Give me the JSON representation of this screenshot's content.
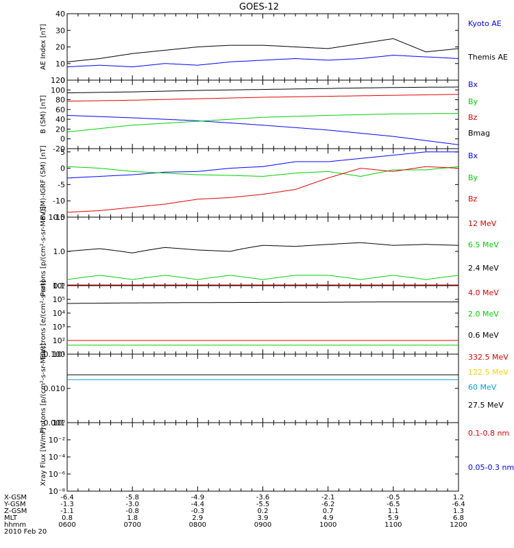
{
  "title": "GOES-12",
  "date": "2010 Feb 20",
  "colors": {
    "black": "#000000",
    "blue": "#0000ff",
    "green": "#00d000",
    "red": "#e00000",
    "cyan": "#00a0e0",
    "yellow": "#ffd200"
  },
  "chart_data": [
    {
      "type": "line",
      "ylabel": "AE Index [nT]",
      "ylim": [
        0,
        40
      ],
      "ticks": [
        "40",
        "30",
        "20",
        "10",
        "0"
      ],
      "tick_values": [
        40,
        30,
        20,
        10,
        0
      ],
      "x_hours": [
        6,
        6.5,
        7,
        7.5,
        8,
        8.5,
        9,
        9.5,
        10,
        10.5,
        11,
        11.5,
        12
      ],
      "series": [
        {
          "name": "Kyoto AE",
          "color": "blue",
          "values": [
            8,
            9,
            8,
            10,
            9,
            11,
            12,
            13,
            12,
            13,
            15,
            14,
            13
          ]
        },
        {
          "name": "Themis AE",
          "color": "black",
          "values": [
            11,
            13,
            16,
            18,
            20,
            21,
            21,
            20,
            19,
            22,
            25,
            17,
            19
          ]
        }
      ]
    },
    {
      "type": "line",
      "ylabel": "B (SM) [nT]",
      "ylim": [
        -20,
        120
      ],
      "ticks": [
        "120",
        "100",
        "80",
        "60",
        "40",
        "20",
        "0",
        "-20"
      ],
      "tick_values": [
        120,
        100,
        80,
        60,
        40,
        20,
        0,
        -20
      ],
      "x_hours": [
        6,
        7,
        8,
        9,
        10,
        11,
        12
      ],
      "series": [
        {
          "name": "Bx",
          "color": "blue",
          "values": [
            48,
            43,
            37,
            28,
            18,
            5,
            -12
          ]
        },
        {
          "name": "By",
          "color": "green",
          "values": [
            14,
            28,
            36,
            44,
            48,
            51,
            52
          ]
        },
        {
          "name": "Bz",
          "color": "red",
          "values": [
            77,
            79,
            82,
            85,
            87,
            89,
            91
          ]
        },
        {
          "name": "Bmag",
          "color": "black",
          "values": [
            94,
            96,
            99,
            101,
            103,
            105,
            106
          ]
        }
      ]
    },
    {
      "type": "line",
      "ylabel": "B (SM)-IGRF (SM) [nT]",
      "ylim": [
        -15,
        6
      ],
      "ticks": [
        "5",
        "0",
        "-5",
        "-10",
        "-15"
      ],
      "tick_values": [
        5,
        0,
        -5,
        -10,
        -15
      ],
      "x_hours": [
        6,
        6.5,
        7,
        7.5,
        8,
        8.5,
        9,
        9.5,
        10,
        10.5,
        11,
        11.5,
        12
      ],
      "series": [
        {
          "name": "Bx",
          "color": "blue",
          "values": [
            -3,
            -2.5,
            -2,
            -1.2,
            -1,
            0,
            0.5,
            2,
            2,
            3,
            4,
            5,
            5
          ]
        },
        {
          "name": "By",
          "color": "green",
          "values": [
            0.5,
            0,
            -1,
            -1.5,
            -2,
            -2.2,
            -2.5,
            -1.5,
            -1,
            -2.5,
            -0.5,
            -0.5,
            0.5
          ]
        },
        {
          "name": "Bz",
          "color": "red",
          "values": [
            -13.5,
            -13,
            -12,
            -11,
            -9.5,
            -9,
            -8,
            -6.5,
            -3,
            0,
            -1,
            0.5,
            0
          ]
        }
      ]
    },
    {
      "type": "line",
      "ylabel": "Protons [p/(cm²-s-sr-MeV)]",
      "scale": "log",
      "ylim": [
        0.1,
        10
      ],
      "ticks": [
        "10.0",
        "1.0",
        "0.1"
      ],
      "tick_values": [
        10,
        1,
        0.1
      ],
      "x_hours": [
        6,
        6.5,
        7,
        7.5,
        8,
        8.5,
        9,
        9.5,
        10,
        10.5,
        11,
        11.5,
        12
      ],
      "series": [
        {
          "name": "12 MeV",
          "color": "red",
          "values": [
            0.1,
            0.1,
            0.1,
            0.1,
            0.1,
            0.1,
            0.1,
            0.1,
            0.1,
            0.1,
            0.1,
            0.1,
            0.1
          ]
        },
        {
          "name": "6.5 MeV",
          "color": "green",
          "values": [
            0.15,
            0.2,
            0.15,
            0.2,
            0.15,
            0.2,
            0.15,
            0.2,
            0.2,
            0.15,
            0.2,
            0.15,
            0.2
          ]
        },
        {
          "name": "2.4 MeV",
          "color": "black",
          "values": [
            1.0,
            1.2,
            0.9,
            1.3,
            1.1,
            1.0,
            1.5,
            1.4,
            1.6,
            1.8,
            1.5,
            1.6,
            1.5
          ]
        }
      ]
    },
    {
      "type": "line",
      "ylabel": "Electrons [e/(cm²-s-sr)]",
      "scale": "log",
      "ylim": [
        10,
        1000000
      ],
      "ticks": [
        "10⁶",
        "10⁵",
        "10⁴",
        "10³",
        "10²",
        "10¹"
      ],
      "tick_values": [
        1000000,
        100000,
        10000,
        1000,
        100,
        10
      ],
      "x_hours": [
        6,
        7,
        8,
        9,
        10,
        11,
        12
      ],
      "series": [
        {
          "name": "4.0 MeV",
          "color": "red",
          "values": [
            100,
            100,
            100,
            100,
            100,
            100,
            100
          ]
        },
        {
          "name": "2.0 MeV",
          "color": "green",
          "values": [
            45,
            45,
            45,
            45,
            45,
            45,
            45
          ]
        },
        {
          "name": "0.6 MeV",
          "color": "black",
          "values": [
            50000,
            55000,
            58000,
            60000,
            62000,
            65000,
            65000
          ]
        }
      ]
    },
    {
      "type": "line",
      "ylabel": "Protons [p/(cm²-s-sr-MeV)]",
      "scale": "log",
      "ylim": [
        0.001,
        0.1
      ],
      "ticks": [
        "0.100",
        "0.010",
        "0.001"
      ],
      "tick_values": [
        0.1,
        0.01,
        0.001
      ],
      "x_hours": [
        6,
        7,
        8,
        9,
        10,
        11,
        12
      ],
      "series": [
        {
          "name": "332.5 MeV",
          "color": "red",
          "values": []
        },
        {
          "name": "122.5 MeV",
          "color": "yellow",
          "values": []
        },
        {
          "name": "60 MeV",
          "color": "cyan",
          "values": [
            0.018,
            0.018,
            0.018,
            0.018,
            0.018,
            0.018,
            0.018
          ]
        },
        {
          "name": "27.5 MeV",
          "color": "black",
          "values": [
            0.025,
            0.025,
            0.025,
            0.025,
            0.025,
            0.025,
            0.025
          ]
        }
      ]
    },
    {
      "type": "line",
      "ylabel": "Xray Flux [W/m²]",
      "scale": "log",
      "ylim": [
        1e-08,
        1
      ],
      "ticks": [
        "10⁰",
        "10⁻²",
        "10⁻⁴",
        "10⁻⁶",
        "10⁻⁸"
      ],
      "tick_values": [
        1,
        0.01,
        0.0001,
        1e-06,
        1e-08
      ],
      "x_hours": [],
      "series": [
        {
          "name": "0.1-0.8 nm",
          "color": "red",
          "values": []
        },
        {
          "name": "0.05-0.3 nm",
          "color": "blue",
          "values": []
        }
      ]
    }
  ],
  "axis_table": {
    "row_labels": [
      "X-GSM",
      "Y-GSM",
      "Z-GSM",
      "MLT",
      "hhmm"
    ],
    "columns": [
      [
        "-6.4",
        "-1.3",
        "-1.1",
        "0.8",
        "0600"
      ],
      [
        "-5.8",
        "-3.0",
        "-0.8",
        "1.8",
        "0700"
      ],
      [
        "-4.9",
        "-4.4",
        "-0.3",
        "2.9",
        "0800"
      ],
      [
        "-3.6",
        "-5.5",
        "0.2",
        "3.9",
        "0900"
      ],
      [
        "-2.1",
        "-6.2",
        "0.7",
        "4.9",
        "1000"
      ],
      [
        "-0.5",
        "-6.5",
        "1.1",
        "5.9",
        "1100"
      ],
      [
        "1.2",
        "-6.4",
        "1.3",
        "6.8",
        "1200"
      ]
    ]
  }
}
